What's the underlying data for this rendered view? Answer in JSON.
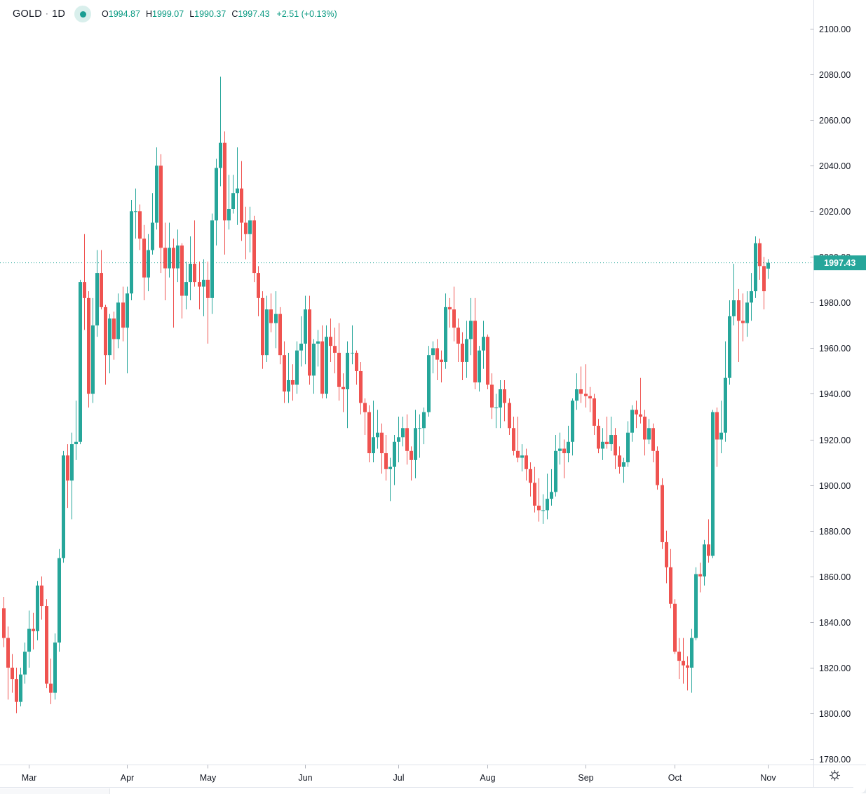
{
  "header": {
    "symbol": "GOLD",
    "separator": "·",
    "timeframe": "1D",
    "ohlc": [
      {
        "label": "O",
        "value": "1994.87"
      },
      {
        "label": "H",
        "value": "1999.07"
      },
      {
        "label": "L",
        "value": "1990.37"
      },
      {
        "label": "C",
        "value": "1997.43"
      }
    ],
    "change": "+2.51 (+0.13%)"
  },
  "icons": {
    "series_marker": "dot-icon",
    "settings": "gear-icon"
  },
  "price_axis": {
    "labels": [
      "2100.00",
      "2080.00",
      "2060.00",
      "2040.00",
      "2020.00",
      "2000.00",
      "1980.00",
      "1960.00",
      "1940.00",
      "1920.00",
      "1900.00",
      "1880.00",
      "1860.00",
      "1840.00",
      "1820.00",
      "1800.00",
      "1780.00"
    ],
    "current_price_label": "1997.43"
  },
  "colors": {
    "up": "#26a69a",
    "down": "#ef5350",
    "text": "#131722",
    "value_text": "#089981",
    "axis_line": "#e0e3eb",
    "tick": "#b2b5be",
    "badge_bg": "#26a69a",
    "badge_text": "#ffffff",
    "dotted_line": "#26a69a"
  },
  "chart_data": {
    "type": "candlestick",
    "symbol": "GOLD",
    "timeframe": "1D",
    "legend_last_bar": {
      "open": 1994.87,
      "high": 1999.07,
      "low": 1990.37,
      "close": 1997.43,
      "change": "+2.51",
      "change_pct": "+0.13%"
    },
    "y_axis": {
      "min_tick": 1780,
      "max_tick": 2100,
      "step": 20,
      "grid": false
    },
    "current_price": 1997.43,
    "months": [
      {
        "label": "Mar",
        "candle_index": 6
      },
      {
        "label": "Apr",
        "candle_index": 29
      },
      {
        "label": "May",
        "candle_index": 48
      },
      {
        "label": "Jun",
        "candle_index": 71
      },
      {
        "label": "Jul",
        "candle_index": 93
      },
      {
        "label": "Aug",
        "candle_index": 114
      },
      {
        "label": "Sep",
        "candle_index": 137
      },
      {
        "label": "Oct",
        "candle_index": 158
      },
      {
        "label": "Nov",
        "candle_index": 180
      }
    ],
    "candles_format": [
      "open",
      "high",
      "low",
      "close"
    ],
    "candles": [
      [
        1846,
        1851,
        1829,
        1833
      ],
      [
        1833,
        1838,
        1806,
        1820
      ],
      [
        1820,
        1826,
        1809,
        1815
      ],
      [
        1815,
        1820,
        1800,
        1805
      ],
      [
        1805,
        1820,
        1803,
        1817
      ],
      [
        1817,
        1831,
        1813,
        1827
      ],
      [
        1827,
        1845,
        1820,
        1837
      ],
      [
        1837,
        1844,
        1828,
        1836
      ],
      [
        1836,
        1858,
        1832,
        1856
      ],
      [
        1856,
        1860,
        1841,
        1847
      ],
      [
        1847,
        1850,
        1811,
        1813
      ],
      [
        1813,
        1824,
        1804,
        1809
      ],
      [
        1809,
        1835,
        1806,
        1831
      ],
      [
        1831,
        1872,
        1827,
        1868
      ],
      [
        1868,
        1915,
        1866,
        1913
      ],
      [
        1913,
        1918,
        1890,
        1902
      ],
      [
        1902,
        1923,
        1885,
        1918
      ],
      [
        1918,
        1937,
        1911,
        1919
      ],
      [
        1919,
        1990,
        1918,
        1989
      ],
      [
        1989,
        2010,
        1968,
        1982
      ],
      [
        1982,
        1985,
        1934,
        1940
      ],
      [
        1940,
        1982,
        1936,
        1970
      ],
      [
        1970,
        2003,
        1965,
        1993
      ],
      [
        1993,
        2003,
        1977,
        1978
      ],
      [
        1978,
        1979,
        1944,
        1957
      ],
      [
        1957,
        1975,
        1949,
        1973
      ],
      [
        1973,
        1976,
        1955,
        1964
      ],
      [
        1964,
        1984,
        1960,
        1980
      ],
      [
        1980,
        1987,
        1963,
        1969
      ],
      [
        1969,
        1987,
        1949,
        1984
      ],
      [
        1984,
        2025,
        1981,
        2020
      ],
      [
        2020,
        2030,
        2008,
        2020
      ],
      [
        2020,
        2023,
        2003,
        2008
      ],
      [
        2008,
        2014,
        1981,
        1991
      ],
      [
        1991,
        2010,
        1985,
        2003
      ],
      [
        2003,
        2028,
        2001,
        2015
      ],
      [
        2015,
        2048,
        2012,
        2040
      ],
      [
        2040,
        2045,
        1993,
        2004
      ],
      [
        2004,
        2015,
        1981,
        1995
      ],
      [
        1995,
        2015,
        1991,
        2004
      ],
      [
        2004,
        2008,
        1969,
        1995
      ],
      [
        1995,
        2012,
        1989,
        2005
      ],
      [
        2005,
        2006,
        1973,
        1983
      ],
      [
        1983,
        1998,
        1977,
        1989
      ],
      [
        1989,
        2009,
        1981,
        1997
      ],
      [
        1997,
        2016,
        1987,
        1989
      ],
      [
        1989,
        1998,
        1977,
        1987
      ],
      [
        1987,
        1999,
        1974,
        1990
      ],
      [
        1990,
        1998,
        1962,
        1982
      ],
      [
        1982,
        2019,
        1975,
        2016
      ],
      [
        2016,
        2043,
        2005,
        2039
      ],
      [
        2039,
        2079,
        2031,
        2050
      ],
      [
        2050,
        2055,
        2001,
        2016
      ],
      [
        2016,
        2036,
        2012,
        2021
      ],
      [
        2021,
        2036,
        2019,
        2028
      ],
      [
        2028,
        2048,
        2014,
        2030
      ],
      [
        2030,
        2042,
        2007,
        2015
      ],
      [
        2015,
        2022,
        1999,
        2010
      ],
      [
        2010,
        2022,
        2002,
        2016
      ],
      [
        2016,
        2018,
        1989,
        1993
      ],
      [
        1993,
        1996,
        1974,
        1982
      ],
      [
        1982,
        1985,
        1951,
        1957
      ],
      [
        1957,
        1983,
        1954,
        1977
      ],
      [
        1977,
        1984,
        1967,
        1971
      ],
      [
        1971,
        1985,
        1960,
        1975
      ],
      [
        1975,
        1978,
        1953,
        1957
      ],
      [
        1957,
        1963,
        1936,
        1941
      ],
      [
        1941,
        1958,
        1936,
        1946
      ],
      [
        1946,
        1953,
        1937,
        1944
      ],
      [
        1944,
        1963,
        1940,
        1959
      ],
      [
        1959,
        1974,
        1952,
        1962
      ],
      [
        1962,
        1983,
        1953,
        1977
      ],
      [
        1977,
        1983,
        1944,
        1948
      ],
      [
        1948,
        1964,
        1940,
        1962
      ],
      [
        1962,
        1968,
        1952,
        1963
      ],
      [
        1963,
        1970,
        1938,
        1940
      ],
      [
        1940,
        1970,
        1938,
        1965
      ],
      [
        1965,
        1973,
        1954,
        1961
      ],
      [
        1961,
        1969,
        1949,
        1958
      ],
      [
        1958,
        1971,
        1937,
        1943
      ],
      [
        1943,
        1949,
        1932,
        1942
      ],
      [
        1942,
        1963,
        1925,
        1958
      ],
      [
        1958,
        1970,
        1953,
        1958
      ],
      [
        1958,
        1959,
        1944,
        1950
      ],
      [
        1950,
        1954,
        1931,
        1936
      ],
      [
        1936,
        1938,
        1922,
        1932
      ],
      [
        1932,
        1935,
        1910,
        1914
      ],
      [
        1914,
        1937,
        1910,
        1921
      ],
      [
        1921,
        1933,
        1916,
        1923
      ],
      [
        1923,
        1927,
        1905,
        1914
      ],
      [
        1914,
        1922,
        1902,
        1907
      ],
      [
        1907,
        1912,
        1893,
        1908
      ],
      [
        1908,
        1922,
        1900,
        1919
      ],
      [
        1919,
        1930,
        1910,
        1921
      ],
      [
        1921,
        1930,
        1917,
        1925
      ],
      [
        1925,
        1931,
        1909,
        1915
      ],
      [
        1915,
        1917,
        1902,
        1911
      ],
      [
        1911,
        1933,
        1903,
        1925
      ],
      [
        1925,
        1931,
        1912,
        1925
      ],
      [
        1925,
        1934,
        1918,
        1932
      ],
      [
        1932,
        1961,
        1930,
        1957
      ],
      [
        1957,
        1963,
        1949,
        1960
      ],
      [
        1960,
        1964,
        1946,
        1955
      ],
      [
        1955,
        1959,
        1945,
        1954
      ],
      [
        1954,
        1984,
        1951,
        1978
      ],
      [
        1978,
        1982,
        1969,
        1977
      ],
      [
        1977,
        1987,
        1963,
        1969
      ],
      [
        1969,
        1973,
        1954,
        1962
      ],
      [
        1962,
        1967,
        1946,
        1954
      ],
      [
        1954,
        1972,
        1947,
        1964
      ],
      [
        1964,
        1982,
        1957,
        1972
      ],
      [
        1972,
        1982,
        1942,
        1945
      ],
      [
        1945,
        1961,
        1941,
        1959
      ],
      [
        1959,
        1972,
        1951,
        1965
      ],
      [
        1965,
        1966,
        1942,
        1944
      ],
      [
        1944,
        1949,
        1929,
        1934
      ],
      [
        1934,
        1940,
        1925,
        1934
      ],
      [
        1934,
        1946,
        1925,
        1942
      ],
      [
        1942,
        1946,
        1928,
        1936
      ],
      [
        1936,
        1938,
        1922,
        1925
      ],
      [
        1925,
        1930,
        1913,
        1915
      ],
      [
        1915,
        1930,
        1910,
        1912
      ],
      [
        1912,
        1918,
        1906,
        1913
      ],
      [
        1913,
        1916,
        1902,
        1907
      ],
      [
        1907,
        1910,
        1895,
        1901
      ],
      [
        1901,
        1908,
        1888,
        1891
      ],
      [
        1891,
        1903,
        1884,
        1889
      ],
      [
        1889,
        1896,
        1883,
        1889
      ],
      [
        1889,
        1905,
        1885,
        1894
      ],
      [
        1894,
        1907,
        1891,
        1897
      ],
      [
        1897,
        1922,
        1895,
        1915
      ],
      [
        1915,
        1923,
        1909,
        1916
      ],
      [
        1916,
        1920,
        1903,
        1914
      ],
      [
        1914,
        1926,
        1910,
        1919
      ],
      [
        1919,
        1938,
        1913,
        1937
      ],
      [
        1937,
        1949,
        1933,
        1942
      ],
      [
        1942,
        1952,
        1936,
        1940
      ],
      [
        1940,
        1953,
        1934,
        1939
      ],
      [
        1939,
        1943,
        1932,
        1938
      ],
      [
        1938,
        1940,
        1922,
        1926
      ],
      [
        1926,
        1929,
        1914,
        1916
      ],
      [
        1916,
        1925,
        1911,
        1919
      ],
      [
        1919,
        1930,
        1916,
        1918
      ],
      [
        1918,
        1930,
        1915,
        1922
      ],
      [
        1922,
        1925,
        1907,
        1913
      ],
      [
        1913,
        1917,
        1905,
        1908
      ],
      [
        1908,
        1912,
        1901,
        1910
      ],
      [
        1910,
        1928,
        1908,
        1923
      ],
      [
        1923,
        1935,
        1919,
        1933
      ],
      [
        1933,
        1937,
        1925,
        1931
      ],
      [
        1931,
        1947,
        1927,
        1930
      ],
      [
        1930,
        1933,
        1913,
        1920
      ],
      [
        1920,
        1929,
        1918,
        1925
      ],
      [
        1925,
        1927,
        1910,
        1915
      ],
      [
        1915,
        1917,
        1898,
        1900
      ],
      [
        1900,
        1903,
        1872,
        1875
      ],
      [
        1875,
        1880,
        1857,
        1864
      ],
      [
        1864,
        1872,
        1846,
        1848
      ],
      [
        1848,
        1850,
        1826,
        1827
      ],
      [
        1827,
        1833,
        1815,
        1823
      ],
      [
        1823,
        1833,
        1813,
        1821
      ],
      [
        1821,
        1825,
        1810,
        1820
      ],
      [
        1820,
        1837,
        1809,
        1833
      ],
      [
        1833,
        1864,
        1832,
        1861
      ],
      [
        1861,
        1866,
        1853,
        1860
      ],
      [
        1860,
        1876,
        1856,
        1874
      ],
      [
        1874,
        1885,
        1866,
        1869
      ],
      [
        1869,
        1933,
        1868,
        1932
      ],
      [
        1932,
        1934,
        1908,
        1920
      ],
      [
        1920,
        1937,
        1914,
        1923
      ],
      [
        1923,
        1963,
        1919,
        1947
      ],
      [
        1947,
        1981,
        1944,
        1974
      ],
      [
        1974,
        1997,
        1970,
        1981
      ],
      [
        1981,
        1986,
        1954,
        1972
      ],
      [
        1972,
        1984,
        1963,
        1971
      ],
      [
        1971,
        1985,
        1965,
        1980
      ],
      [
        1980,
        1993,
        1972,
        1985
      ],
      [
        1985,
        2009,
        1982,
        2006
      ],
      [
        2006,
        2008,
        1990,
        1996
      ],
      [
        1996,
        2000,
        1977,
        1985
      ],
      [
        1994.87,
        1999.07,
        1990.37,
        1997.43
      ]
    ]
  }
}
